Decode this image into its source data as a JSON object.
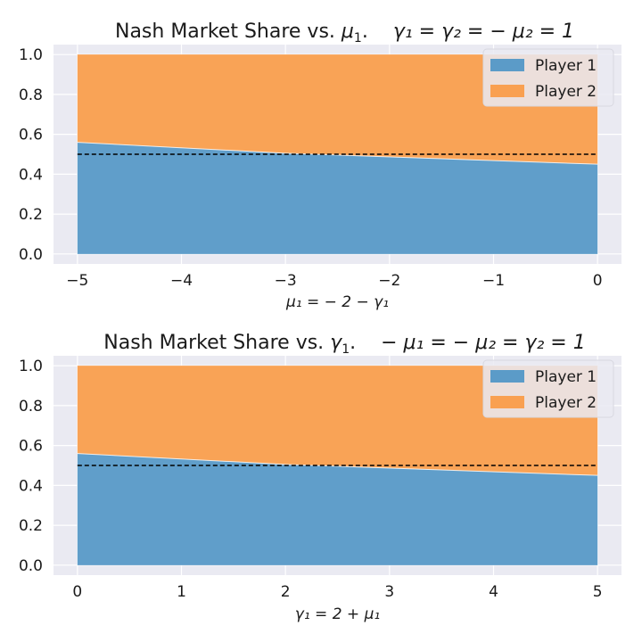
{
  "colors": {
    "player1": "#5b9bc8",
    "player2": "#f9a051",
    "plot_bg": "#eaeaf2",
    "grid": "#ffffff",
    "reference": "#000000"
  },
  "chart_data": [
    {
      "type": "area",
      "stacked": true,
      "title_main": "Nash Market Share vs. ",
      "title_var": "μ",
      "title_var_sub": "1",
      "title_sep": ".",
      "title_cond": "γ₁ = γ₂ = − μ₂ = 1",
      "xlabel": "μ₁ = − 2 − γ₁",
      "x": [
        -5,
        -3,
        0
      ],
      "xlim": [
        -5.23,
        0.23
      ],
      "ylim": [
        -0.05,
        1.05
      ],
      "xticks": [
        -5,
        -4,
        -3,
        -2,
        -1,
        0
      ],
      "xtick_labels": [
        "−5",
        "−4",
        "−3",
        "−2",
        "−1",
        "0"
      ],
      "yticks": [
        0.0,
        0.2,
        0.4,
        0.6,
        0.8,
        1.0
      ],
      "ytick_labels": [
        "0.0",
        "0.2",
        "0.4",
        "0.6",
        "0.8",
        "1.0"
      ],
      "series": [
        {
          "name": "Player 1",
          "values": [
            0.56,
            0.505,
            0.45
          ]
        },
        {
          "name": "Player 2",
          "values": [
            0.44,
            0.495,
            0.55
          ]
        }
      ],
      "reference_line": 0.5,
      "legend_position": "top-right",
      "grid": true
    },
    {
      "type": "area",
      "stacked": true,
      "title_main": "Nash Market Share vs. ",
      "title_var": "γ",
      "title_var_sub": "1",
      "title_sep": ".",
      "title_cond": "− μ₁ = − μ₂ = γ₂ = 1",
      "xlabel": "γ₁ = 2 + μ₁",
      "x": [
        0,
        2,
        5
      ],
      "xlim": [
        -0.23,
        5.23
      ],
      "ylim": [
        -0.05,
        1.05
      ],
      "xticks": [
        0,
        1,
        2,
        3,
        4,
        5
      ],
      "xtick_labels": [
        "0",
        "1",
        "2",
        "3",
        "4",
        "5"
      ],
      "yticks": [
        0.0,
        0.2,
        0.4,
        0.6,
        0.8,
        1.0
      ],
      "ytick_labels": [
        "0.0",
        "0.2",
        "0.4",
        "0.6",
        "0.8",
        "1.0"
      ],
      "series": [
        {
          "name": "Player 1",
          "values": [
            0.56,
            0.505,
            0.45
          ]
        },
        {
          "name": "Player 2",
          "values": [
            0.44,
            0.495,
            0.55
          ]
        }
      ],
      "reference_line": 0.5,
      "legend_position": "top-right",
      "grid": true
    }
  ]
}
